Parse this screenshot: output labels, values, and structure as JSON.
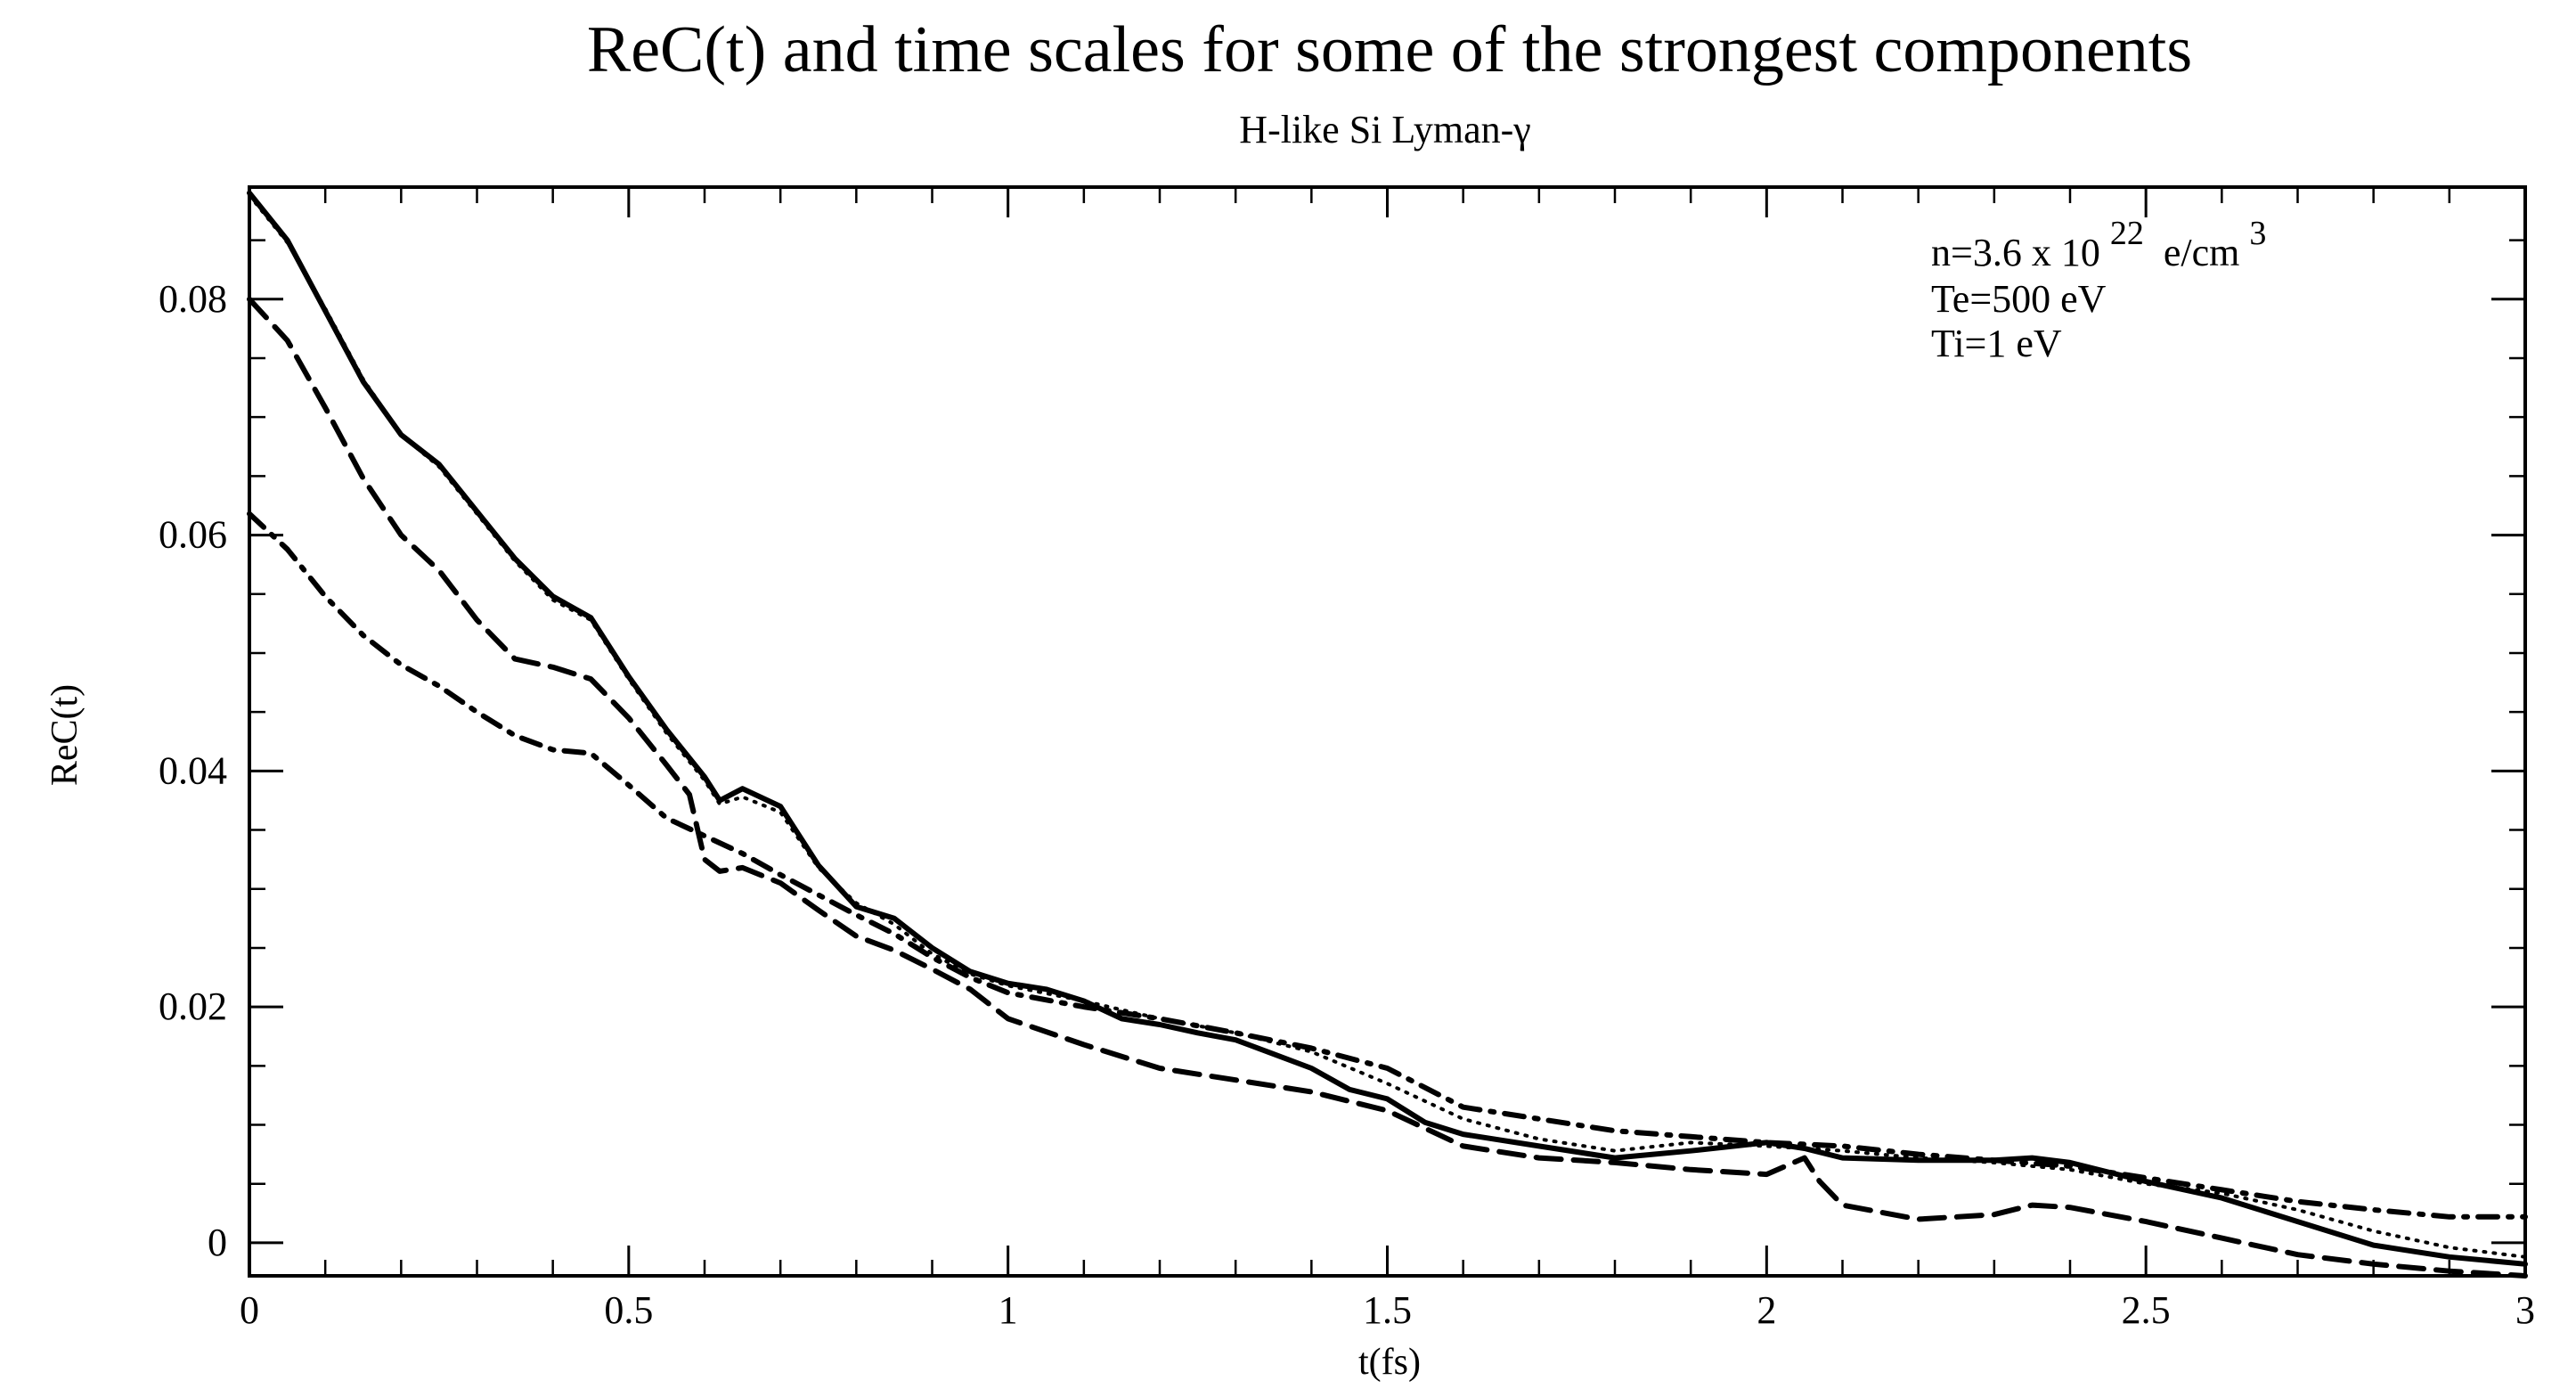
{
  "chart_data": {
    "type": "line",
    "title": "ReC(t) and time scales for some of the strongest components",
    "subtitle": "H-like Si Lyman-γ",
    "xlabel": "t(fs)",
    "ylabel": "ReC(t)",
    "xlim": [
      0,
      3
    ],
    "ylim": [
      -0.0028,
      0.0895
    ],
    "xticks": [
      0,
      0.5,
      1,
      1.5,
      2,
      2.5,
      3
    ],
    "xtick_labels": [
      "0",
      "0.5",
      "1",
      "1.5",
      "2",
      "2.5",
      "3"
    ],
    "yticks": [
      0,
      0.02,
      0.04,
      0.06,
      0.08
    ],
    "ytick_labels": [
      "0",
      "0.02",
      "0.04",
      "0.06",
      "0.08"
    ],
    "grid": false,
    "legend": {
      "placement": "top-right",
      "lines": [
        {
          "text": "n=3.6 x 10",
          "sup": "22",
          "tail": " e/cm",
          "sup2": "3"
        },
        {
          "text": "Te=500 eV"
        },
        {
          "text": "Ti=1 eV"
        }
      ]
    },
    "series": [
      {
        "name": "solid",
        "style": "solid",
        "x": [
          0,
          0.05,
          0.1,
          0.15,
          0.2,
          0.25,
          0.3,
          0.35,
          0.4,
          0.45,
          0.5,
          0.55,
          0.6,
          0.62,
          0.65,
          0.7,
          0.75,
          0.8,
          0.85,
          0.9,
          0.95,
          1.0,
          1.05,
          1.1,
          1.15,
          1.2,
          1.25,
          1.3,
          1.35,
          1.4,
          1.45,
          1.5,
          1.55,
          1.6,
          1.7,
          1.8,
          1.9,
          2.0,
          2.05,
          2.1,
          2.2,
          2.3,
          2.35,
          2.4,
          2.5,
          2.6,
          2.7,
          2.8,
          2.9,
          3.0
        ],
        "y": [
          0.089,
          0.085,
          0.079,
          0.073,
          0.0685,
          0.066,
          0.062,
          0.058,
          0.0548,
          0.053,
          0.048,
          0.0435,
          0.0395,
          0.0375,
          0.0385,
          0.037,
          0.032,
          0.0285,
          0.0275,
          0.025,
          0.023,
          0.022,
          0.0215,
          0.0205,
          0.019,
          0.0185,
          0.0178,
          0.0172,
          0.016,
          0.0148,
          0.013,
          0.0122,
          0.0102,
          0.0092,
          0.0082,
          0.0072,
          0.0078,
          0.0085,
          0.008,
          0.0072,
          0.007,
          0.007,
          0.0072,
          0.0068,
          0.0052,
          0.0038,
          0.0018,
          -0.0002,
          -0.0012,
          -0.0018
        ]
      },
      {
        "name": "dotted",
        "style": "dotted",
        "x": [
          0,
          0.05,
          0.1,
          0.15,
          0.2,
          0.25,
          0.3,
          0.35,
          0.4,
          0.45,
          0.5,
          0.55,
          0.6,
          0.62,
          0.65,
          0.7,
          0.75,
          0.8,
          0.85,
          0.9,
          0.95,
          1.0,
          1.1,
          1.2,
          1.3,
          1.4,
          1.5,
          1.6,
          1.7,
          1.8,
          1.9,
          2.0,
          2.1,
          2.2,
          2.3,
          2.4,
          2.5,
          2.6,
          2.7,
          2.8,
          2.9,
          3.0
        ],
        "y": [
          0.0888,
          0.0848,
          0.0792,
          0.0732,
          0.0685,
          0.0658,
          0.0618,
          0.0578,
          0.0545,
          0.0528,
          0.0478,
          0.0432,
          0.0392,
          0.0372,
          0.0378,
          0.0365,
          0.0318,
          0.0288,
          0.027,
          0.0245,
          0.0228,
          0.0218,
          0.0205,
          0.019,
          0.0178,
          0.0162,
          0.0135,
          0.0105,
          0.0088,
          0.0078,
          0.0085,
          0.0082,
          0.0078,
          0.0072,
          0.0068,
          0.0062,
          0.005,
          0.0042,
          0.0028,
          0.001,
          -0.0004,
          -0.0012
        ]
      },
      {
        "name": "dashed",
        "style": "dashed",
        "x": [
          0,
          0.05,
          0.1,
          0.15,
          0.2,
          0.25,
          0.3,
          0.35,
          0.4,
          0.45,
          0.5,
          0.55,
          0.58,
          0.6,
          0.62,
          0.65,
          0.7,
          0.75,
          0.8,
          0.85,
          0.9,
          0.95,
          1.0,
          1.1,
          1.2,
          1.3,
          1.4,
          1.5,
          1.6,
          1.7,
          1.8,
          1.9,
          2.0,
          2.05,
          2.07,
          2.1,
          2.2,
          2.3,
          2.35,
          2.4,
          2.5,
          2.6,
          2.7,
          2.8,
          2.9,
          3.0
        ],
        "y": [
          0.08,
          0.0765,
          0.0708,
          0.0648,
          0.06,
          0.057,
          0.0528,
          0.0495,
          0.0488,
          0.0478,
          0.0445,
          0.0405,
          0.038,
          0.0325,
          0.0315,
          0.0318,
          0.0305,
          0.0282,
          0.026,
          0.0248,
          0.0232,
          0.0215,
          0.019,
          0.0168,
          0.0148,
          0.0138,
          0.0128,
          0.0112,
          0.0082,
          0.0072,
          0.0068,
          0.0062,
          0.0058,
          0.0072,
          0.0052,
          0.0032,
          0.002,
          0.0024,
          0.0032,
          0.003,
          0.0018,
          0.0004,
          -0.001,
          -0.0018,
          -0.0024,
          -0.0028
        ]
      },
      {
        "name": "dash-dot",
        "style": "dashdot",
        "x": [
          0,
          0.05,
          0.1,
          0.15,
          0.2,
          0.25,
          0.3,
          0.35,
          0.4,
          0.45,
          0.5,
          0.55,
          0.6,
          0.65,
          0.7,
          0.75,
          0.8,
          0.85,
          0.9,
          0.95,
          1.0,
          1.1,
          1.2,
          1.3,
          1.4,
          1.5,
          1.6,
          1.7,
          1.8,
          1.9,
          2.0,
          2.1,
          2.2,
          2.3,
          2.4,
          2.5,
          2.6,
          2.7,
          2.8,
          2.9,
          3.0
        ],
        "y": [
          0.0618,
          0.0588,
          0.0548,
          0.0515,
          0.049,
          0.0472,
          0.045,
          0.043,
          0.0418,
          0.0415,
          0.0388,
          0.036,
          0.0345,
          0.033,
          0.0312,
          0.0295,
          0.0278,
          0.0262,
          0.0242,
          0.0225,
          0.0212,
          0.02,
          0.019,
          0.0178,
          0.0165,
          0.0148,
          0.0115,
          0.0105,
          0.0095,
          0.009,
          0.0085,
          0.0082,
          0.0075,
          0.007,
          0.0065,
          0.0055,
          0.0045,
          0.0035,
          0.0028,
          0.0022,
          0.0022
        ]
      }
    ]
  }
}
